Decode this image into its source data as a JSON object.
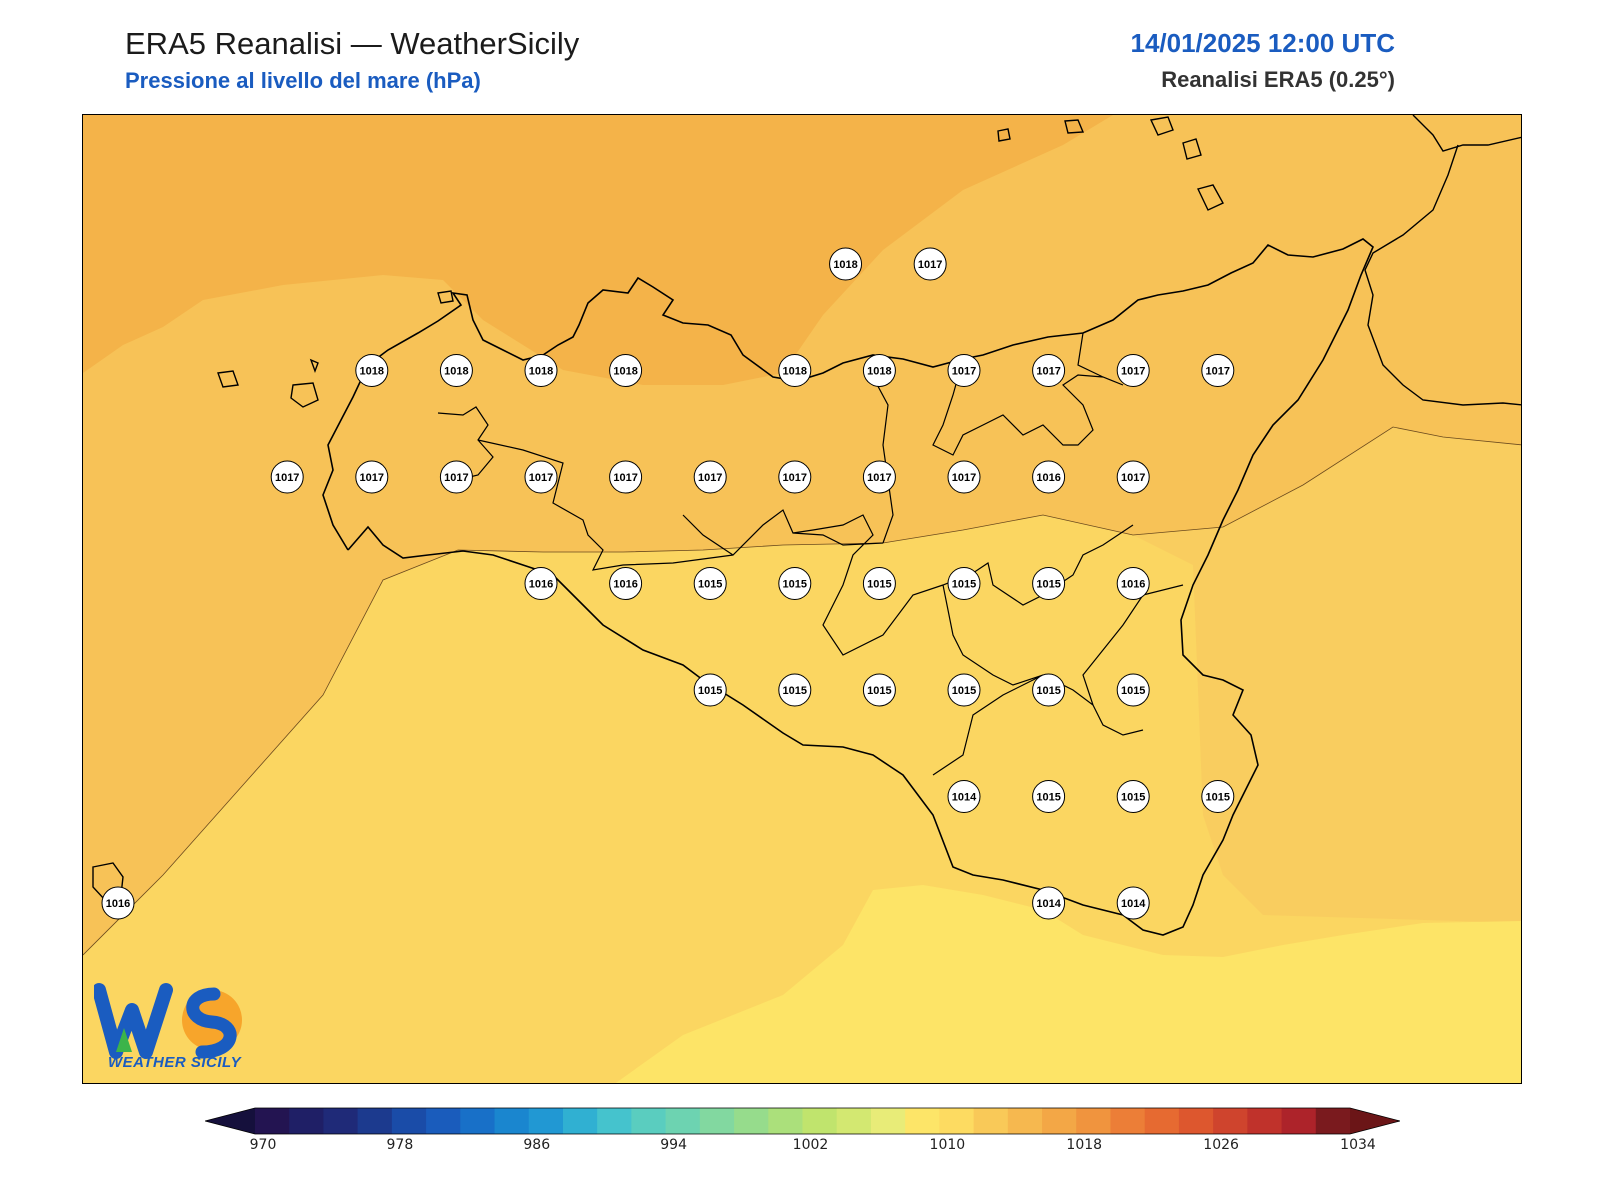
{
  "header": {
    "title": "ERA5 Reanalisi — WeatherSicily",
    "subtitle": "Pressione al livello del mare (hPa)",
    "datetime": "14/01/2025 12:00 UTC",
    "source": "Reanalisi ERA5 (0.25°)"
  },
  "logo": {
    "text": "WEATHER SICILY",
    "icon": "ws-logo-icon",
    "lettering": "WS"
  },
  "colorbar": {
    "min": 970,
    "max": 1034,
    "step": 2,
    "tick_labels": [
      "970",
      "978",
      "986",
      "994",
      "1002",
      "1010",
      "1018",
      "1026",
      "1034"
    ],
    "colors": [
      "#231451",
      "#1f1f66",
      "#1f2a78",
      "#1c3a8e",
      "#1a4ca8",
      "#1a5cbc",
      "#1870c8",
      "#1a86cf",
      "#2198d3",
      "#30b0d2",
      "#45c3cd",
      "#5acdbf",
      "#6dd3b1",
      "#82d8a0",
      "#96dc8c",
      "#abe07b",
      "#c0e46d",
      "#d3e871",
      "#e8ec78",
      "#fde568",
      "#fddb61",
      "#f9c958",
      "#f6b84f",
      "#f3a746",
      "#f0943e",
      "#ec7e37",
      "#e66a31",
      "#dd572e",
      "#cf442d",
      "#c0322b",
      "#ad232a",
      "#7a1a1e"
    ],
    "under_color": "#15103c",
    "over_color": "#6b1517"
  },
  "map": {
    "region": "Sicily",
    "field": "mslp",
    "field_colors": {
      "1019": "#f4b349",
      "1018": "#f7c257",
      "1017": "#f9cd5f",
      "1016": "#fbd661",
      "1015": "#fde467"
    },
    "stations": [
      {
        "v": "1018",
        "lon": 14.15,
        "lat": 38.55
      },
      {
        "v": "1017",
        "lon": 14.4,
        "lat": 38.55
      },
      {
        "v": "1018",
        "lon": 12.75,
        "lat": 38.25
      },
      {
        "v": "1018",
        "lon": 13.0,
        "lat": 38.25
      },
      {
        "v": "1018",
        "lon": 13.25,
        "lat": 38.25
      },
      {
        "v": "1018",
        "lon": 13.5,
        "lat": 38.25
      },
      {
        "v": "1018",
        "lon": 14.0,
        "lat": 38.25
      },
      {
        "v": "1018",
        "lon": 14.25,
        "lat": 38.25
      },
      {
        "v": "1017",
        "lon": 14.5,
        "lat": 38.25
      },
      {
        "v": "1017",
        "lon": 14.75,
        "lat": 38.25
      },
      {
        "v": "1017",
        "lon": 15.0,
        "lat": 38.25
      },
      {
        "v": "1017",
        "lon": 15.25,
        "lat": 38.25
      },
      {
        "v": "1017",
        "lon": 12.5,
        "lat": 37.95
      },
      {
        "v": "1017",
        "lon": 12.75,
        "lat": 37.95
      },
      {
        "v": "1017",
        "lon": 13.0,
        "lat": 37.95
      },
      {
        "v": "1017",
        "lon": 13.25,
        "lat": 37.95
      },
      {
        "v": "1017",
        "lon": 13.5,
        "lat": 37.95
      },
      {
        "v": "1017",
        "lon": 13.75,
        "lat": 37.95
      },
      {
        "v": "1017",
        "lon": 14.0,
        "lat": 37.95
      },
      {
        "v": "1017",
        "lon": 14.25,
        "lat": 37.95
      },
      {
        "v": "1017",
        "lon": 14.5,
        "lat": 37.95
      },
      {
        "v": "1016",
        "lon": 14.75,
        "lat": 37.95
      },
      {
        "v": "1017",
        "lon": 15.0,
        "lat": 37.95
      },
      {
        "v": "1016",
        "lon": 13.25,
        "lat": 37.65
      },
      {
        "v": "1016",
        "lon": 13.5,
        "lat": 37.65
      },
      {
        "v": "1015",
        "lon": 13.75,
        "lat": 37.65
      },
      {
        "v": "1015",
        "lon": 14.0,
        "lat": 37.65
      },
      {
        "v": "1015",
        "lon": 14.25,
        "lat": 37.65
      },
      {
        "v": "1015",
        "lon": 14.5,
        "lat": 37.65
      },
      {
        "v": "1015",
        "lon": 14.75,
        "lat": 37.65
      },
      {
        "v": "1016",
        "lon": 15.0,
        "lat": 37.65
      },
      {
        "v": "1015",
        "lon": 13.75,
        "lat": 37.35
      },
      {
        "v": "1015",
        "lon": 14.0,
        "lat": 37.35
      },
      {
        "v": "1015",
        "lon": 14.25,
        "lat": 37.35
      },
      {
        "v": "1015",
        "lon": 14.5,
        "lat": 37.35
      },
      {
        "v": "1015",
        "lon": 14.75,
        "lat": 37.35
      },
      {
        "v": "1015",
        "lon": 15.0,
        "lat": 37.35
      },
      {
        "v": "1014",
        "lon": 14.5,
        "lat": 37.05
      },
      {
        "v": "1015",
        "lon": 14.75,
        "lat": 37.05
      },
      {
        "v": "1015",
        "lon": 15.0,
        "lat": 37.05
      },
      {
        "v": "1015",
        "lon": 15.25,
        "lat": 37.05
      },
      {
        "v": "1016",
        "lon": 12.0,
        "lat": 36.75
      },
      {
        "v": "1014",
        "lon": 14.75,
        "lat": 36.75
      },
      {
        "v": "1014",
        "lon": 15.0,
        "lat": 36.75
      }
    ]
  }
}
